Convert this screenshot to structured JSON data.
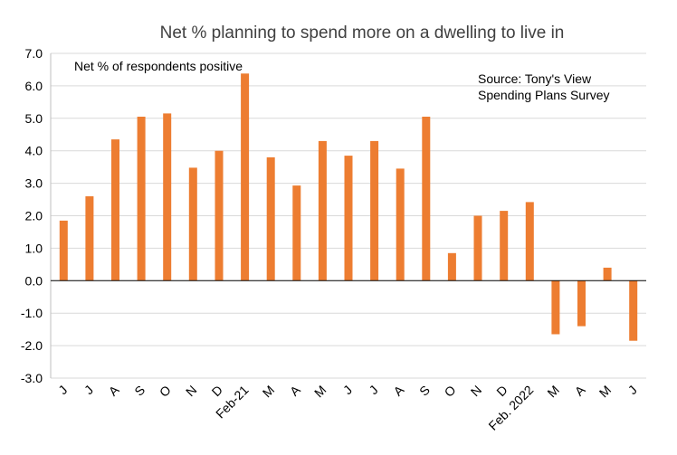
{
  "chart_data": {
    "type": "bar",
    "title": "Net % planning to spend more on a dwelling to live in",
    "series_label": "Net % of respondents positive",
    "source_line1": "Source: Tony's View",
    "source_line2": "Spending Plans Survey",
    "xlabel": "",
    "ylabel": "",
    "ylim": [
      -3.0,
      7.0
    ],
    "ytick_step": 1.0,
    "grid": true,
    "bar_color": "#ED7D31",
    "grid_color": "#D9D9D9",
    "categories": [
      "J",
      "J",
      "A",
      "S",
      "O",
      "N",
      "D",
      "Feb-21",
      "M",
      "A",
      "M",
      "J",
      "J",
      "A",
      "S",
      "O",
      "N",
      "D",
      "Feb. 2022",
      "M",
      "A",
      "M",
      "J"
    ],
    "values": [
      1.85,
      2.6,
      4.35,
      5.05,
      5.15,
      3.48,
      4.0,
      6.38,
      3.8,
      2.93,
      4.3,
      3.85,
      4.3,
      3.45,
      5.05,
      0.85,
      2.0,
      2.15,
      2.42,
      -1.65,
      -1.4,
      0.4,
      -1.85
    ]
  }
}
